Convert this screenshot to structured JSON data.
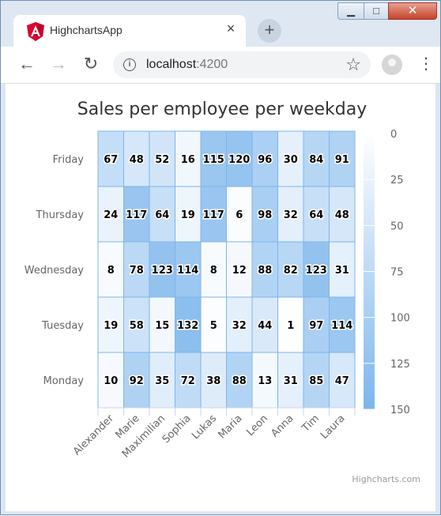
{
  "browser": {
    "tab_title": "HighchartsApp",
    "tab_close": "×",
    "new_tab": "+",
    "back": "←",
    "forward": "→",
    "reload": "↻",
    "info_icon": "i",
    "url_host": "localhost",
    "url_port": ":4200",
    "bookmark": "☆",
    "menu": "⋮",
    "minimize": "▁",
    "maximize": "□",
    "close": "✕"
  },
  "chart_data": {
    "type": "heatmap",
    "title": "Sales per employee per weekday",
    "x_categories": [
      "Alexander",
      "Marie",
      "Maximilian",
      "Sophia",
      "Lukas",
      "Maria",
      "Leon",
      "Anna",
      "Tim",
      "Laura"
    ],
    "y_categories": [
      "Monday",
      "Tuesday",
      "Wednesday",
      "Thursday",
      "Friday"
    ],
    "values": [
      [
        10,
        19,
        8,
        24,
        67
      ],
      [
        92,
        58,
        78,
        117,
        48
      ],
      [
        35,
        15,
        123,
        64,
        52
      ],
      [
        72,
        132,
        114,
        19,
        16
      ],
      [
        38,
        5,
        8,
        117,
        115
      ],
      [
        88,
        32,
        12,
        6,
        120
      ],
      [
        13,
        44,
        88,
        98,
        96
      ],
      [
        31,
        1,
        82,
        32,
        30
      ],
      [
        85,
        97,
        123,
        64,
        84
      ],
      [
        47,
        114,
        31,
        48,
        91
      ]
    ],
    "color_axis": {
      "min": 0,
      "max": 150,
      "min_color": "#FFFFFF",
      "max_color": "#7CB5EC",
      "ticks": [
        "0",
        "25",
        "50",
        "75",
        "100",
        "125",
        "150"
      ]
    },
    "legend_position": "right"
  },
  "credits": "Highcharts.com",
  "colors": {
    "angular_red": "#DD0031",
    "cell_border": "#7CB5EC"
  }
}
